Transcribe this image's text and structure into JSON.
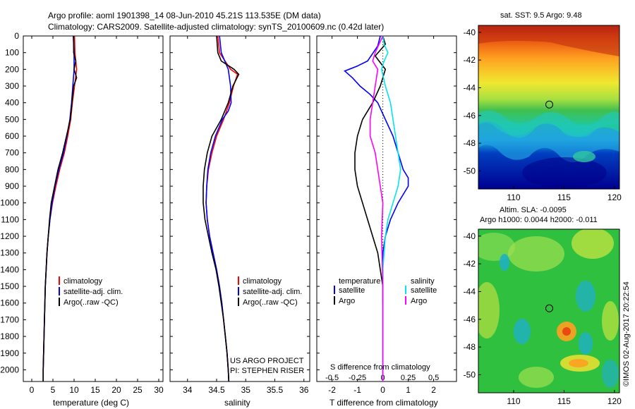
{
  "title": {
    "line1": "Argo profile: aoml 1901398_14 08-Jun-2010 45.21S 113.535E (DM data)",
    "line2": "Climatology: CARS2009. Satellite-adjusted climatology: synTS_20100609.nc (0.42d later)"
  },
  "credit": "©IMOS 02-Aug-2017 20:22:54",
  "colors": {
    "climatology": "#ff0000",
    "satellite": "#0000ff",
    "argo": "#000000",
    "argo_salinity": "#ff00ff",
    "satellite_salinity": "#00e5ee"
  },
  "chart_data": [
    {
      "type": "line",
      "xlabel": "temperature (deg C)",
      "xlim": [
        -2,
        31
      ],
      "xticks": [
        "0",
        "5",
        "10",
        "15",
        "20",
        "25",
        "30"
      ],
      "ylim": [
        0,
        2070
      ],
      "yticks": [
        "0",
        "100",
        "200",
        "300",
        "400",
        "500",
        "600",
        "700",
        "800",
        "900",
        "1000",
        "1100",
        "1200",
        "1300",
        "1400",
        "1500",
        "1600",
        "1700",
        "1800",
        "1900",
        "2000"
      ],
      "legend": [
        "climatology",
        "satellite-adj. clim.",
        "Argo(..raw -QC)"
      ],
      "series": [
        {
          "name": "climatology",
          "points": [
            [
              10.1,
              0
            ],
            [
              10.2,
              100
            ],
            [
              10.6,
              200
            ],
            [
              10.1,
              300
            ],
            [
              9.6,
              400
            ],
            [
              9.2,
              500
            ],
            [
              8.5,
              600
            ],
            [
              7.7,
              700
            ],
            [
              6.6,
              800
            ],
            [
              5.7,
              900
            ],
            [
              4.9,
              1000
            ],
            [
              4.3,
              1100
            ],
            [
              3.9,
              1200
            ],
            [
              3.6,
              1300
            ],
            [
              3.4,
              1400
            ],
            [
              3.2,
              1500
            ],
            [
              3.1,
              1600
            ],
            [
              3.0,
              1700
            ],
            [
              2.9,
              1800
            ],
            [
              2.8,
              1900
            ],
            [
              2.7,
              2000
            ],
            [
              2.7,
              2070
            ]
          ]
        },
        {
          "name": "satellite-adj. clim.",
          "points": [
            [
              9.8,
              0
            ],
            [
              10.0,
              100
            ],
            [
              10.0,
              200
            ],
            [
              9.7,
              300
            ],
            [
              9.4,
              400
            ],
            [
              9.0,
              500
            ],
            [
              8.3,
              600
            ],
            [
              7.5,
              700
            ],
            [
              6.4,
              800
            ],
            [
              5.5,
              900
            ],
            [
              4.8,
              1000
            ],
            [
              4.3,
              1100
            ],
            [
              3.9,
              1200
            ],
            [
              3.6,
              1300
            ],
            [
              3.4,
              1400
            ],
            [
              3.2,
              1500
            ],
            [
              3.1,
              1600
            ],
            [
              3.0,
              1700
            ],
            [
              2.9,
              1800
            ],
            [
              2.8,
              1900
            ],
            [
              2.7,
              2000
            ],
            [
              2.7,
              2070
            ]
          ]
        },
        {
          "name": "Argo(..raw -QC)",
          "points": [
            [
              9.9,
              0
            ],
            [
              9.9,
              100
            ],
            [
              10.4,
              150
            ],
            [
              10.0,
              200
            ],
            [
              10.6,
              250
            ],
            [
              9.9,
              300
            ],
            [
              9.5,
              400
            ],
            [
              9.1,
              500
            ],
            [
              8.2,
              600
            ],
            [
              7.3,
              700
            ],
            [
              6.2,
              800
            ],
            [
              5.4,
              900
            ],
            [
              4.6,
              1000
            ],
            [
              4.2,
              1100
            ],
            [
              3.9,
              1200
            ],
            [
              3.6,
              1300
            ],
            [
              3.4,
              1400
            ],
            [
              3.2,
              1500
            ],
            [
              3.1,
              1600
            ],
            [
              3.0,
              1700
            ],
            [
              2.9,
              1800
            ],
            [
              2.8,
              1900
            ],
            [
              2.7,
              2000
            ],
            [
              2.7,
              2070
            ]
          ]
        }
      ]
    },
    {
      "type": "line",
      "xlabel": "salinity",
      "xlim": [
        33.7,
        36.1
      ],
      "xticks": [
        "34",
        "34.5",
        "35",
        "35.5",
        "36"
      ],
      "ylim": [
        0,
        2070
      ],
      "legend": [
        "climatology",
        "satellite-adj. clim.",
        "Argo(..raw -QC)"
      ],
      "annotation": [
        "US ARGO PROJECT",
        "PI: STEPHEN RISER"
      ],
      "series": [
        {
          "name": "climatology",
          "points": [
            [
              34.52,
              0
            ],
            [
              34.55,
              100
            ],
            [
              34.74,
              200
            ],
            [
              34.86,
              230
            ],
            [
              34.79,
              300
            ],
            [
              34.72,
              400
            ],
            [
              34.62,
              500
            ],
            [
              34.5,
              600
            ],
            [
              34.42,
              700
            ],
            [
              34.36,
              800
            ],
            [
              34.33,
              900
            ],
            [
              34.32,
              1000
            ],
            [
              34.34,
              1100
            ],
            [
              34.38,
              1200
            ],
            [
              34.44,
              1300
            ],
            [
              34.5,
              1400
            ],
            [
              34.55,
              1500
            ],
            [
              34.59,
              1600
            ],
            [
              34.62,
              1700
            ],
            [
              34.65,
              1800
            ],
            [
              34.68,
              1900
            ],
            [
              34.7,
              2000
            ],
            [
              34.71,
              2070
            ]
          ]
        },
        {
          "name": "satellite-adj. clim.",
          "points": [
            [
              34.55,
              0
            ],
            [
              34.58,
              100
            ],
            [
              34.7,
              200
            ],
            [
              34.74,
              300
            ],
            [
              34.75,
              400
            ],
            [
              34.7,
              450
            ],
            [
              34.6,
              500
            ],
            [
              34.48,
              600
            ],
            [
              34.4,
              700
            ],
            [
              34.35,
              800
            ],
            [
              34.33,
              900
            ],
            [
              34.32,
              1000
            ],
            [
              34.34,
              1100
            ],
            [
              34.38,
              1200
            ],
            [
              34.44,
              1300
            ],
            [
              34.5,
              1400
            ],
            [
              34.55,
              1500
            ],
            [
              34.59,
              1600
            ],
            [
              34.62,
              1700
            ],
            [
              34.65,
              1800
            ],
            [
              34.68,
              1900
            ],
            [
              34.7,
              2000
            ],
            [
              34.71,
              2070
            ]
          ]
        },
        {
          "name": "Argo(..raw -QC)",
          "points": [
            [
              34.5,
              0
            ],
            [
              34.52,
              100
            ],
            [
              34.58,
              150
            ],
            [
              34.8,
              200
            ],
            [
              34.88,
              230
            ],
            [
              34.78,
              300
            ],
            [
              34.7,
              400
            ],
            [
              34.58,
              500
            ],
            [
              34.42,
              600
            ],
            [
              34.34,
              700
            ],
            [
              34.29,
              800
            ],
            [
              34.27,
              900
            ],
            [
              34.27,
              1000
            ],
            [
              34.3,
              1100
            ],
            [
              34.36,
              1200
            ],
            [
              34.42,
              1300
            ],
            [
              34.49,
              1400
            ],
            [
              34.54,
              1500
            ],
            [
              34.58,
              1600
            ],
            [
              34.62,
              1700
            ],
            [
              34.65,
              1800
            ],
            [
              34.68,
              1900
            ],
            [
              34.7,
              2000
            ],
            [
              34.71,
              2070
            ]
          ]
        }
      ]
    },
    {
      "type": "line",
      "xlabel": "T difference from climatology",
      "xlabel_top": "S difference from climatology",
      "xlim": [
        -2.6,
        2.9
      ],
      "xticks": [
        "-2",
        "-1",
        "0",
        "1",
        "2"
      ],
      "xticks_top": [
        "-0.5",
        "-0.25",
        "0",
        "0.25",
        "0.5"
      ],
      "ylim": [
        0,
        2070
      ],
      "legend_groups": [
        {
          "header": "temperature",
          "entries": [
            "satellite",
            "Argo"
          ]
        },
        {
          "header": "salinity",
          "entries": [
            "satellite",
            "Argo"
          ]
        }
      ],
      "series": [
        {
          "name": "temperature satellite",
          "points": [
            [
              -0.1,
              0
            ],
            [
              -0.2,
              60
            ],
            [
              -0.6,
              150
            ],
            [
              -1.0,
              180
            ],
            [
              -1.5,
              210
            ],
            [
              -1.2,
              250
            ],
            [
              -0.9,
              300
            ],
            [
              -0.5,
              350
            ],
            [
              -0.2,
              400
            ],
            [
              0.1,
              500
            ],
            [
              0.4,
              600
            ],
            [
              0.6,
              700
            ],
            [
              0.8,
              800
            ],
            [
              1.0,
              850
            ],
            [
              1.0,
              900
            ],
            [
              0.6,
              1000
            ],
            [
              0.3,
              1100
            ],
            [
              0.1,
              1200
            ],
            [
              0.0,
              1300
            ],
            [
              0.0,
              1500
            ],
            [
              0.0,
              2070
            ]
          ]
        },
        {
          "name": "temperature Argo",
          "points": [
            [
              0,
              0
            ],
            [
              0.1,
              50
            ],
            [
              -0.3,
              120
            ],
            [
              0.1,
              200
            ],
            [
              -0.1,
              300
            ],
            [
              -0.4,
              400
            ],
            [
              -0.8,
              500
            ],
            [
              -1.0,
              600
            ],
            [
              -1.1,
              700
            ],
            [
              -1.1,
              800
            ],
            [
              -1.0,
              900
            ],
            [
              -0.8,
              1000
            ],
            [
              -0.6,
              1100
            ],
            [
              -0.4,
              1200
            ],
            [
              -0.2,
              1300
            ],
            [
              -0.1,
              1400
            ],
            [
              0.0,
              1500
            ],
            [
              0.0,
              1600
            ]
          ]
        },
        {
          "name": "salinity satellite",
          "points": [
            [
              0.0,
              0
            ],
            [
              0.05,
              50
            ],
            [
              0.2,
              100
            ],
            [
              0.05,
              150
            ],
            [
              -0.05,
              200
            ],
            [
              0.1,
              300
            ],
            [
              0.3,
              400
            ],
            [
              0.4,
              500
            ],
            [
              0.5,
              600
            ],
            [
              0.6,
              700
            ],
            [
              0.7,
              800
            ],
            [
              0.6,
              900
            ],
            [
              0.4,
              1000
            ],
            [
              0.2,
              1100
            ],
            [
              0.1,
              1200
            ],
            [
              0.0,
              1400
            ],
            [
              0.0,
              2070
            ]
          ]
        },
        {
          "name": "salinity Argo",
          "points": [
            [
              0,
              0
            ],
            [
              -0.3,
              100
            ],
            [
              -0.4,
              150
            ],
            [
              -0.2,
              200
            ],
            [
              -0.3,
              300
            ],
            [
              -0.4,
              400
            ],
            [
              -0.5,
              500
            ],
            [
              -0.5,
              600
            ],
            [
              -0.3,
              700
            ],
            [
              -0.2,
              800
            ],
            [
              -0.1,
              900
            ],
            [
              0.0,
              1000
            ],
            [
              -0.05,
              1200
            ],
            [
              0.0,
              1500
            ],
            [
              0.0,
              2070
            ]
          ]
        }
      ]
    },
    {
      "type": "heatmap",
      "title": "sat. SST: 9.5 Argo: 9.48",
      "xlim": [
        106.5,
        120.5
      ],
      "ylim": [
        -51.3,
        -39.5
      ],
      "xticks": [
        "110",
        "115",
        "120"
      ],
      "yticks": [
        "-40",
        "-42",
        "-44",
        "-46",
        "-48",
        "-50"
      ],
      "marker": {
        "lon": 113.535,
        "lat": -45.21
      }
    },
    {
      "type": "heatmap",
      "title": "Altim. SLA: -0.0095",
      "subtitle": "Argo h1000: 0.0044 h2000: -0.011",
      "xlim": [
        106.5,
        120.5
      ],
      "ylim": [
        -51.3,
        -39.5
      ],
      "xticks": [
        "110",
        "115",
        "120"
      ],
      "yticks": [
        "-40",
        "-42",
        "-44",
        "-46",
        "-48",
        "-50"
      ],
      "marker": {
        "lon": 113.535,
        "lat": -45.21
      }
    }
  ]
}
